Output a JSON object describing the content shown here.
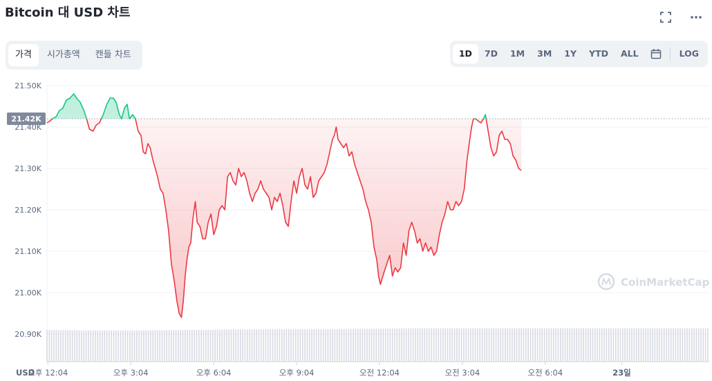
{
  "header": {
    "title": "Bitcoin 대 USD 차트",
    "fullscreen_icon": "fullscreen-icon",
    "more_icon": "more-horizontal-icon"
  },
  "tabs": [
    {
      "label": "가격",
      "active": true
    },
    {
      "label": "시가총액",
      "active": false
    },
    {
      "label": "캔들 차트",
      "active": false
    }
  ],
  "ranges": [
    {
      "label": "1D",
      "active": true
    },
    {
      "label": "7D",
      "active": false
    },
    {
      "label": "1M",
      "active": false
    },
    {
      "label": "3M",
      "active": false
    },
    {
      "label": "1Y",
      "active": false
    },
    {
      "label": "YTD",
      "active": false
    },
    {
      "label": "ALL",
      "active": false
    }
  ],
  "calendar_icon": "calendar-icon",
  "log_label": "LOG",
  "watermark": "CoinMarketCap",
  "colors": {
    "up": "#16c784",
    "down": "#ea3943",
    "grid": "#eff2f5",
    "label": "#58667e",
    "badge": "#808a9d",
    "volume": "#c9ced8"
  },
  "chart_data": {
    "type": "area",
    "currency_label": "USD",
    "baseline": 21.42,
    "baseline_label": "21.42K",
    "ylim": [
      20.9,
      21.5
    ],
    "y_ticks": [
      {
        "value": 21.5,
        "label": "21.50K"
      },
      {
        "value": 21.4,
        "label": "21.40K"
      },
      {
        "value": 21.3,
        "label": "21.30K"
      },
      {
        "value": 21.2,
        "label": "21.20K"
      },
      {
        "value": 21.1,
        "label": "21.10K"
      },
      {
        "value": 21.0,
        "label": "21.00K"
      },
      {
        "value": 20.9,
        "label": "20.90K"
      }
    ],
    "x_ticks": [
      {
        "t": 0,
        "label": "오후 12:04"
      },
      {
        "t": 180,
        "label": "오후 3:04"
      },
      {
        "t": 360,
        "label": "오후 6:04"
      },
      {
        "t": 540,
        "label": "오후 9:04"
      },
      {
        "t": 720,
        "label": "오전 12:04"
      },
      {
        "t": 900,
        "label": "오전 3:04"
      },
      {
        "t": 1080,
        "label": "오전 6:04"
      },
      {
        "t": 1246,
        "label": "23일"
      }
    ],
    "x_range": [
      -2,
      1436
    ],
    "price": [
      [
        -2,
        21.41
      ],
      [
        5,
        21.415
      ],
      [
        10,
        21.42
      ],
      [
        18,
        21.425
      ],
      [
        25,
        21.44
      ],
      [
        32,
        21.445
      ],
      [
        40,
        21.465
      ],
      [
        48,
        21.47
      ],
      [
        56,
        21.48
      ],
      [
        62,
        21.47
      ],
      [
        70,
        21.46
      ],
      [
        78,
        21.44
      ],
      [
        84,
        21.42
      ],
      [
        90,
        21.395
      ],
      [
        98,
        21.39
      ],
      [
        105,
        21.405
      ],
      [
        112,
        21.41
      ],
      [
        120,
        21.43
      ],
      [
        128,
        21.455
      ],
      [
        135,
        21.47
      ],
      [
        142,
        21.47
      ],
      [
        148,
        21.46
      ],
      [
        155,
        21.43
      ],
      [
        160,
        21.42
      ],
      [
        166,
        21.445
      ],
      [
        172,
        21.455
      ],
      [
        177,
        21.42
      ],
      [
        184,
        21.43
      ],
      [
        190,
        21.42
      ],
      [
        196,
        21.39
      ],
      [
        202,
        21.38
      ],
      [
        207,
        21.34
      ],
      [
        212,
        21.335
      ],
      [
        217,
        21.36
      ],
      [
        222,
        21.35
      ],
      [
        228,
        21.32
      ],
      [
        233,
        21.3
      ],
      [
        238,
        21.28
      ],
      [
        244,
        21.25
      ],
      [
        250,
        21.24
      ],
      [
        256,
        21.2
      ],
      [
        262,
        21.15
      ],
      [
        268,
        21.07
      ],
      [
        274,
        21.03
      ],
      [
        280,
        20.98
      ],
      [
        285,
        20.95
      ],
      [
        290,
        20.94
      ],
      [
        294,
        20.98
      ],
      [
        298,
        21.04
      ],
      [
        302,
        21.08
      ],
      [
        306,
        21.11
      ],
      [
        310,
        21.12
      ],
      [
        315,
        21.18
      ],
      [
        320,
        21.22
      ],
      [
        324,
        21.17
      ],
      [
        330,
        21.16
      ],
      [
        336,
        21.13
      ],
      [
        342,
        21.13
      ],
      [
        348,
        21.17
      ],
      [
        354,
        21.19
      ],
      [
        360,
        21.14
      ],
      [
        366,
        21.16
      ],
      [
        372,
        21.2
      ],
      [
        378,
        21.21
      ],
      [
        384,
        21.2
      ],
      [
        390,
        21.28
      ],
      [
        396,
        21.29
      ],
      [
        402,
        21.27
      ],
      [
        408,
        21.26
      ],
      [
        414,
        21.3
      ],
      [
        420,
        21.28
      ],
      [
        426,
        21.29
      ],
      [
        432,
        21.27
      ],
      [
        438,
        21.24
      ],
      [
        444,
        21.22
      ],
      [
        450,
        21.24
      ],
      [
        456,
        21.25
      ],
      [
        462,
        21.27
      ],
      [
        468,
        21.25
      ],
      [
        474,
        21.24
      ],
      [
        480,
        21.23
      ],
      [
        486,
        21.2
      ],
      [
        492,
        21.23
      ],
      [
        498,
        21.22
      ],
      [
        504,
        21.24
      ],
      [
        510,
        21.21
      ],
      [
        516,
        21.17
      ],
      [
        522,
        21.16
      ],
      [
        528,
        21.22
      ],
      [
        534,
        21.27
      ],
      [
        540,
        21.24
      ],
      [
        546,
        21.28
      ],
      [
        552,
        21.3
      ],
      [
        558,
        21.26
      ],
      [
        564,
        21.25
      ],
      [
        570,
        21.28
      ],
      [
        576,
        21.23
      ],
      [
        582,
        21.24
      ],
      [
        588,
        21.27
      ],
      [
        594,
        21.28
      ],
      [
        600,
        21.29
      ],
      [
        606,
        21.31
      ],
      [
        612,
        21.34
      ],
      [
        618,
        21.37
      ],
      [
        622,
        21.38
      ],
      [
        626,
        21.4
      ],
      [
        630,
        21.37
      ],
      [
        636,
        21.36
      ],
      [
        642,
        21.35
      ],
      [
        648,
        21.36
      ],
      [
        654,
        21.33
      ],
      [
        660,
        21.34
      ],
      [
        666,
        21.31
      ],
      [
        672,
        21.29
      ],
      [
        678,
        21.27
      ],
      [
        684,
        21.25
      ],
      [
        690,
        21.22
      ],
      [
        696,
        21.2
      ],
      [
        702,
        21.17
      ],
      [
        708,
        21.11
      ],
      [
        714,
        21.08
      ],
      [
        718,
        21.04
      ],
      [
        722,
        21.02
      ],
      [
        726,
        21.035
      ],
      [
        730,
        21.05
      ],
      [
        736,
        21.07
      ],
      [
        742,
        21.09
      ],
      [
        748,
        21.04
      ],
      [
        754,
        21.06
      ],
      [
        760,
        21.05
      ],
      [
        766,
        21.06
      ],
      [
        772,
        21.12
      ],
      [
        778,
        21.09
      ],
      [
        784,
        21.15
      ],
      [
        790,
        21.17
      ],
      [
        796,
        21.15
      ],
      [
        802,
        21.12
      ],
      [
        808,
        21.13
      ],
      [
        814,
        21.1
      ],
      [
        820,
        21.12
      ],
      [
        826,
        21.1
      ],
      [
        832,
        21.11
      ],
      [
        838,
        21.09
      ],
      [
        844,
        21.1
      ],
      [
        850,
        21.14
      ],
      [
        856,
        21.17
      ],
      [
        862,
        21.19
      ],
      [
        868,
        21.22
      ],
      [
        874,
        21.2
      ],
      [
        880,
        21.2
      ],
      [
        886,
        21.22
      ],
      [
        892,
        21.21
      ],
      [
        898,
        21.22
      ],
      [
        904,
        21.25
      ],
      [
        910,
        21.32
      ],
      [
        916,
        21.37
      ],
      [
        920,
        21.4
      ],
      [
        924,
        21.42
      ],
      [
        928,
        21.42
      ],
      [
        934,
        21.415
      ],
      [
        940,
        21.41
      ],
      [
        946,
        21.42
      ],
      [
        950,
        21.43
      ],
      [
        956,
        21.39
      ],
      [
        962,
        21.35
      ],
      [
        968,
        21.33
      ],
      [
        974,
        21.34
      ],
      [
        980,
        21.38
      ],
      [
        986,
        21.39
      ],
      [
        992,
        21.37
      ],
      [
        998,
        21.37
      ],
      [
        1004,
        21.36
      ],
      [
        1010,
        21.33
      ],
      [
        1016,
        21.32
      ],
      [
        1022,
        21.3
      ],
      [
        1028,
        21.295
      ]
    ],
    "volume": [
      [
        -2,
        20.91
      ],
      [
        100,
        20.909
      ],
      [
        200,
        20.909
      ],
      [
        300,
        20.91
      ],
      [
        400,
        20.911
      ],
      [
        500,
        20.912
      ],
      [
        600,
        20.912
      ],
      [
        700,
        20.913
      ],
      [
        800,
        20.914
      ],
      [
        900,
        20.914
      ],
      [
        1028,
        20.914
      ]
    ]
  }
}
